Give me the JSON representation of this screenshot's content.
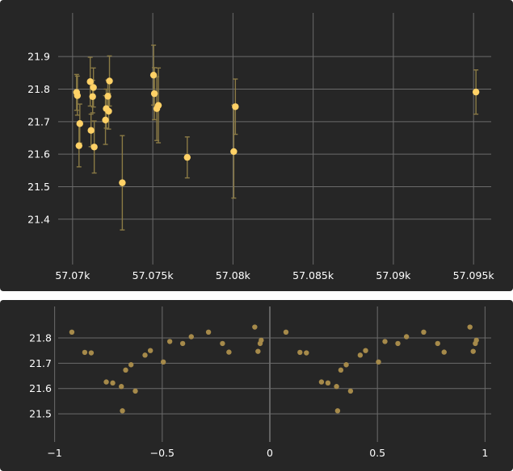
{
  "chart_data": [
    {
      "type": "scatter",
      "title": "",
      "xlabel": "",
      "ylabel": "",
      "xlim": [
        57069.0,
        57096.2
      ],
      "ylim": [
        21.955,
        21.335
      ],
      "y_inverted": true,
      "grid": true,
      "x_ticks": [
        {
          "value": 57070,
          "label": "57.07k"
        },
        {
          "value": 57075,
          "label": "57.075k"
        },
        {
          "value": 57080,
          "label": "57.08k"
        },
        {
          "value": 57085,
          "label": "57.085k"
        },
        {
          "value": 57090,
          "label": "57.09k"
        },
        {
          "value": 57095,
          "label": "57.095k"
        }
      ],
      "y_ticks": [
        {
          "value": 21.4,
          "label": "21.4"
        },
        {
          "value": 21.5,
          "label": "21.5"
        },
        {
          "value": 21.6,
          "label": "21.6"
        },
        {
          "value": 21.7,
          "label": "21.7"
        },
        {
          "value": 21.8,
          "label": "21.8"
        },
        {
          "value": 21.9,
          "label": "21.9"
        }
      ],
      "marker_color": "#ffd166",
      "errorbar_color": "#8a7a45",
      "points": [
        {
          "x": 57070.25,
          "y": 21.79,
          "err": 0.055
        },
        {
          "x": 57070.3,
          "y": 21.78,
          "err": 0.06
        },
        {
          "x": 57070.4,
          "y": 21.626,
          "err": 0.065
        },
        {
          "x": 57070.45,
          "y": 21.694,
          "err": 0.06
        },
        {
          "x": 57071.1,
          "y": 21.823,
          "err": 0.075
        },
        {
          "x": 57071.15,
          "y": 21.673,
          "err": 0.05
        },
        {
          "x": 57071.25,
          "y": 21.777,
          "err": 0.05
        },
        {
          "x": 57071.3,
          "y": 21.805,
          "err": 0.06
        },
        {
          "x": 57071.35,
          "y": 21.622,
          "err": 0.08
        },
        {
          "x": 57072.05,
          "y": 21.705,
          "err": 0.075
        },
        {
          "x": 57072.1,
          "y": 21.74,
          "err": 0.06
        },
        {
          "x": 57072.2,
          "y": 21.778,
          "err": 0.05
        },
        {
          "x": 57072.25,
          "y": 21.732,
          "err": 0.055
        },
        {
          "x": 57072.3,
          "y": 21.825,
          "err": 0.077
        },
        {
          "x": 57073.1,
          "y": 21.512,
          "err": 0.145
        },
        {
          "x": 57075.05,
          "y": 21.843,
          "err": 0.092
        },
        {
          "x": 57075.1,
          "y": 21.786,
          "err": 0.08
        },
        {
          "x": 57075.25,
          "y": 21.74,
          "err": 0.098
        },
        {
          "x": 57075.35,
          "y": 21.75,
          "err": 0.115
        },
        {
          "x": 57077.15,
          "y": 21.59,
          "err": 0.063
        },
        {
          "x": 57080.05,
          "y": 21.608,
          "err": 0.143
        },
        {
          "x": 57080.15,
          "y": 21.746,
          "err": 0.085
        },
        {
          "x": 57095.15,
          "y": 21.791,
          "err": 0.068
        }
      ]
    },
    {
      "type": "scatter",
      "title": "",
      "xlabel": "",
      "ylabel": "",
      "xlim": [
        -1.1,
        1.1
      ],
      "ylim": [
        21.875,
        21.47
      ],
      "y_inverted": true,
      "grid": true,
      "x_ticks": [
        {
          "value": -1,
          "label": "−1"
        },
        {
          "value": -0.5,
          "label": "−0.5"
        },
        {
          "value": 0,
          "label": "0"
        },
        {
          "value": 0.5,
          "label": "0.5"
        },
        {
          "value": 1,
          "label": "1"
        }
      ],
      "y_ticks": [
        {
          "value": 21.5,
          "label": "21.5"
        },
        {
          "value": 21.6,
          "label": "21.6"
        },
        {
          "value": 21.7,
          "label": "21.7"
        },
        {
          "value": 21.8,
          "label": "21.8"
        }
      ],
      "marker_color": "#a68a4a",
      "points": [
        {
          "x": -0.92,
          "y": 21.823
        },
        {
          "x": -0.86,
          "y": 21.743
        },
        {
          "x": -0.83,
          "y": 21.741
        },
        {
          "x": -0.76,
          "y": 21.626
        },
        {
          "x": -0.73,
          "y": 21.622
        },
        {
          "x": -0.69,
          "y": 21.608
        },
        {
          "x": -0.685,
          "y": 21.512
        },
        {
          "x": -0.67,
          "y": 21.673
        },
        {
          "x": -0.645,
          "y": 21.694
        },
        {
          "x": -0.625,
          "y": 21.59
        },
        {
          "x": -0.58,
          "y": 21.732
        },
        {
          "x": -0.555,
          "y": 21.75
        },
        {
          "x": -0.495,
          "y": 21.705
        },
        {
          "x": -0.465,
          "y": 21.786
        },
        {
          "x": -0.405,
          "y": 21.778
        },
        {
          "x": -0.365,
          "y": 21.805
        },
        {
          "x": -0.285,
          "y": 21.823
        },
        {
          "x": -0.22,
          "y": 21.778
        },
        {
          "x": -0.19,
          "y": 21.744
        },
        {
          "x": -0.07,
          "y": 21.843
        },
        {
          "x": -0.055,
          "y": 21.747
        },
        {
          "x": -0.045,
          "y": 21.778
        },
        {
          "x": -0.04,
          "y": 21.791
        },
        {
          "x": 0.075,
          "y": 21.823
        },
        {
          "x": 0.14,
          "y": 21.743
        },
        {
          "x": 0.17,
          "y": 21.741
        },
        {
          "x": 0.24,
          "y": 21.626
        },
        {
          "x": 0.27,
          "y": 21.622
        },
        {
          "x": 0.31,
          "y": 21.608
        },
        {
          "x": 0.315,
          "y": 21.512
        },
        {
          "x": 0.33,
          "y": 21.673
        },
        {
          "x": 0.355,
          "y": 21.694
        },
        {
          "x": 0.375,
          "y": 21.59
        },
        {
          "x": 0.42,
          "y": 21.732
        },
        {
          "x": 0.445,
          "y": 21.75
        },
        {
          "x": 0.505,
          "y": 21.705
        },
        {
          "x": 0.535,
          "y": 21.786
        },
        {
          "x": 0.595,
          "y": 21.778
        },
        {
          "x": 0.635,
          "y": 21.805
        },
        {
          "x": 0.715,
          "y": 21.823
        },
        {
          "x": 0.78,
          "y": 21.778
        },
        {
          "x": 0.81,
          "y": 21.744
        },
        {
          "x": 0.93,
          "y": 21.843
        },
        {
          "x": 0.945,
          "y": 21.747
        },
        {
          "x": 0.955,
          "y": 21.778
        },
        {
          "x": 0.96,
          "y": 21.791
        }
      ]
    }
  ]
}
